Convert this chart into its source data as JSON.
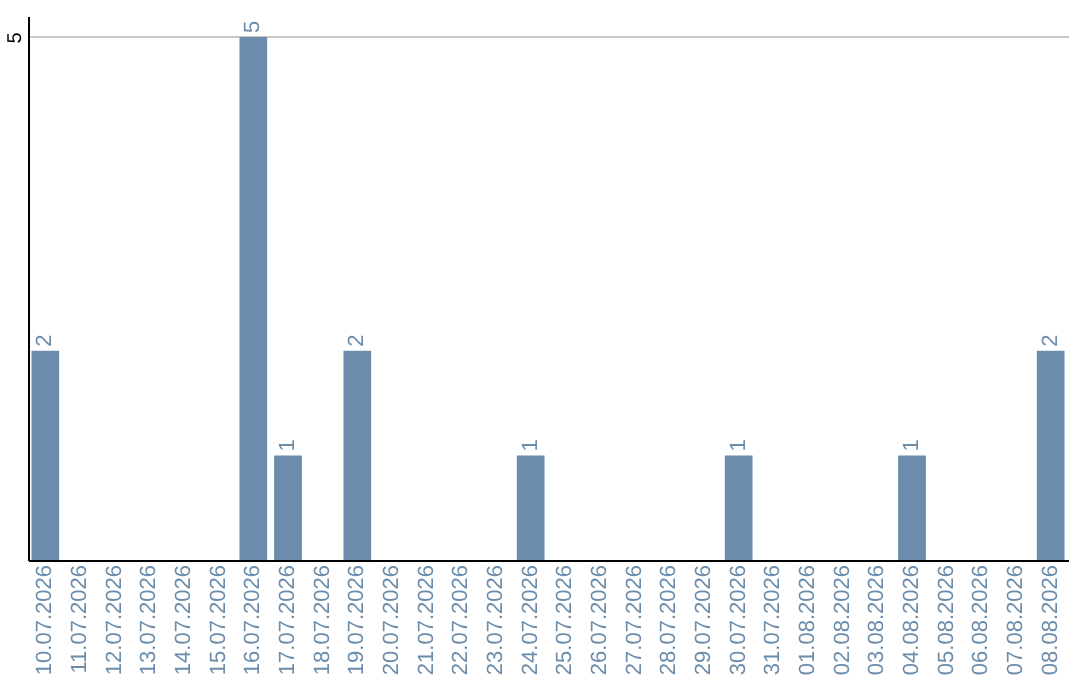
{
  "chart_data": {
    "type": "bar",
    "categories": [
      "10.07.2026",
      "11.07.2026",
      "12.07.2026",
      "13.07.2026",
      "14.07.2026",
      "15.07.2026",
      "16.07.2026",
      "17.07.2026",
      "18.07.2026",
      "19.07.2026",
      "20.07.2026",
      "21.07.2026",
      "22.07.2026",
      "23.07.2026",
      "24.07.2026",
      "25.07.2026",
      "26.07.2026",
      "27.07.2026",
      "28.07.2026",
      "29.07.2026",
      "30.07.2026",
      "31.07.2026",
      "01.08.2026",
      "02.08.2026",
      "03.08.2026",
      "04.08.2026",
      "05.08.2026",
      "06.08.2026",
      "07.08.2026",
      "08.08.2026"
    ],
    "values": [
      2,
      null,
      null,
      null,
      null,
      null,
      5,
      1,
      null,
      2,
      null,
      null,
      null,
      null,
      1,
      null,
      null,
      null,
      null,
      null,
      1,
      null,
      null,
      null,
      null,
      1,
      null,
      null,
      null,
      2
    ],
    "color": "#6b8cab",
    "ylim": [
      0,
      5.2
    ],
    "yticks": [
      5
    ],
    "grid": "y",
    "data_labels": true
  }
}
